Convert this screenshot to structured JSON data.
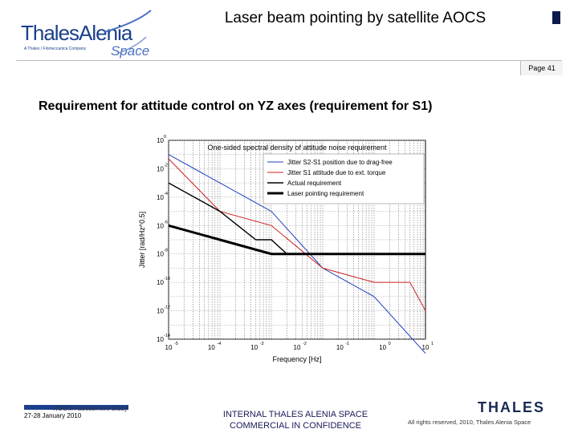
{
  "header": {
    "logo_main": "ThalesAlenia",
    "logo_tagline": "A Thales / Finmeccanica Company",
    "logo_space": "Space",
    "title": "Laser beam pointing by satellite AOCS",
    "page": "Page 41"
  },
  "slide": {
    "subtitle": "Requirement for attitude control on YZ axes (requirement for S1)"
  },
  "colors": {
    "brand_blue": "#1a3f8c",
    "series_blue": "#1f3fbf",
    "series_red": "#cc2020",
    "series_black": "#000000"
  },
  "chart_data": {
    "type": "line",
    "title": "One-sided spectral density of attitude noise requirement",
    "xlabel": "Frequency [Hz]",
    "ylabel": "Jitter [rad/Hz^0.5]",
    "xscale": "log",
    "yscale": "log",
    "xlim": [
      1e-05,
      1
    ],
    "ylim": [
      1e-14,
      1
    ],
    "x_ticks": [
      {
        "base": "10",
        "exp": "-5"
      },
      {
        "base": "10",
        "exp": "-4"
      },
      {
        "base": "10",
        "exp": "-3"
      },
      {
        "base": "10",
        "exp": "-2"
      },
      {
        "base": "10",
        "exp": "-1"
      },
      {
        "base": "10",
        "exp": "0"
      },
      {
        "base": "10",
        "exp": "1"
      }
    ],
    "y_ticks": [
      {
        "base": "10",
        "exp": "0"
      },
      {
        "base": "10",
        "exp": "-2"
      },
      {
        "base": "10",
        "exp": "-4"
      },
      {
        "base": "10",
        "exp": "-6"
      },
      {
        "base": "10",
        "exp": "-8"
      },
      {
        "base": "10",
        "exp": "-10"
      },
      {
        "base": "10",
        "exp": "-12"
      },
      {
        "base": "10",
        "exp": "-14"
      }
    ],
    "grid": true,
    "legend_position": "top-right",
    "series": [
      {
        "name": "Jitter S2-S1 position due to drag-free",
        "color": "#1f3fbf",
        "width": 1,
        "points": [
          [
            1e-05,
            0.1
          ],
          [
            0.001,
            1e-05
          ],
          [
            0.01,
            1e-09
          ],
          [
            0.1,
            1e-11
          ],
          [
            1,
            1e-15
          ]
        ]
      },
      {
        "name": "Jitter S1 attitude due to ext. torque",
        "color": "#cc2020",
        "width": 1,
        "points": [
          [
            1e-05,
            0.05
          ],
          [
            0.0001,
            1e-05
          ],
          [
            0.001,
            1e-06
          ],
          [
            0.01,
            1e-09
          ],
          [
            0.1,
            1e-10
          ],
          [
            0.5,
            1e-10
          ],
          [
            1,
            1e-12
          ]
        ]
      },
      {
        "name": "Actual requirement",
        "color": "#000000",
        "width": 1.4,
        "points": [
          [
            1e-05,
            0.001
          ],
          [
            0.0001,
            1e-05
          ],
          [
            0.0005,
            1e-07
          ],
          [
            0.001,
            1e-07
          ],
          [
            0.002,
            1e-08
          ],
          [
            1,
            1e-08
          ]
        ]
      },
      {
        "name": "Laser pointing requirement",
        "color": "#000000",
        "width": 3,
        "points": [
          [
            1e-05,
            1e-06
          ],
          [
            0.0001,
            1e-07
          ],
          [
            0.001,
            1e-08
          ],
          [
            0.002,
            1e-08
          ],
          [
            1,
            1e-08
          ]
        ]
      }
    ]
  },
  "footer": {
    "left_line1": "NGGM Assessment Study",
    "left_line2": "27-28 January 2010",
    "center_line1": "INTERNAL THALES ALENIA SPACE",
    "center_line2": "COMMERCIAL IN CONFIDENCE",
    "right": "All rights reserved, 2010, Thales Alenia Space",
    "brand": "THALES"
  }
}
